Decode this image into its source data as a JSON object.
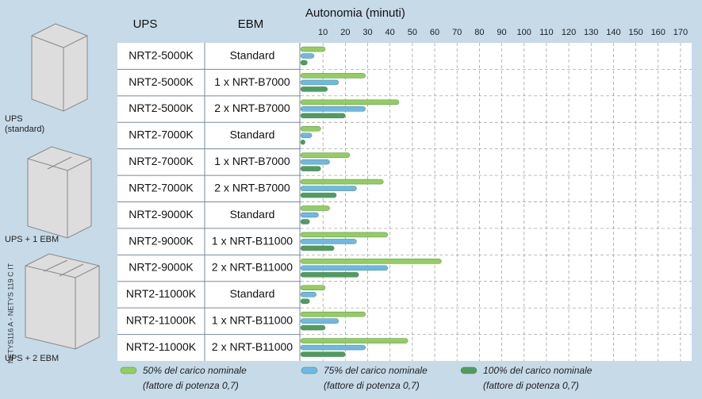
{
  "side_note": "NETYS116 A - NETYS 119 C IT",
  "images": [
    {
      "label": "UPS",
      "sublabel": "(standard)"
    },
    {
      "label": "UPS + 1 EBM"
    },
    {
      "label": "UPS + 2 EBM"
    }
  ],
  "chart_data": {
    "type": "bar",
    "orientation": "horizontal",
    "column_headers": [
      "UPS",
      "EBM"
    ],
    "x_label": "Autonomia (minuti)",
    "categories": [
      "NRT2-5000K",
      "NRT2-5000K",
      "NRT2-5000K",
      "NRT2-7000K",
      "NRT2-7000K",
      "NRT2-7000K",
      "NRT2-9000K",
      "NRT2-9000K",
      "NRT2-9000K",
      "NRT2-11000K",
      "NRT2-11000K",
      "NRT2-11000K"
    ],
    "ebm": [
      "Standard",
      "1 x NRT-B7000",
      "2 x NRT-B7000",
      "Standard",
      "1 x NRT-B7000",
      "2 x NRT-B7000",
      "Standard",
      "1 x NRT-B11000",
      "2 x NRT-B11000",
      "Standard",
      "1 x NRT-B11000",
      "2 x NRT-B11000"
    ],
    "series": [
      {
        "name": "50% del carico nominale",
        "note": "(fattore di potenza 0,7)",
        "color": "#92cf5c",
        "values": [
          11,
          29,
          44,
          9,
          22,
          37,
          13,
          39,
          63,
          11,
          29,
          48
        ]
      },
      {
        "name": "75% del carico nominale",
        "note": "(fattore di potenza 0,7)",
        "color": "#6cb9e6",
        "values": [
          6,
          17,
          29,
          5,
          13,
          25,
          8,
          25,
          39,
          7,
          17,
          29
        ]
      },
      {
        "name": "100% del carico nominale",
        "note": "(fattore di potenza 0,7)",
        "color": "#4f9d5e",
        "values": [
          3,
          12,
          20,
          2,
          9,
          16,
          4,
          15,
          26,
          4,
          11,
          20
        ]
      }
    ],
    "xlim": [
      0,
      175
    ],
    "xticks": [
      10,
      20,
      30,
      40,
      50,
      60,
      70,
      80,
      90,
      100,
      110,
      120,
      130,
      140,
      150,
      160,
      170
    ],
    "grid": true
  }
}
